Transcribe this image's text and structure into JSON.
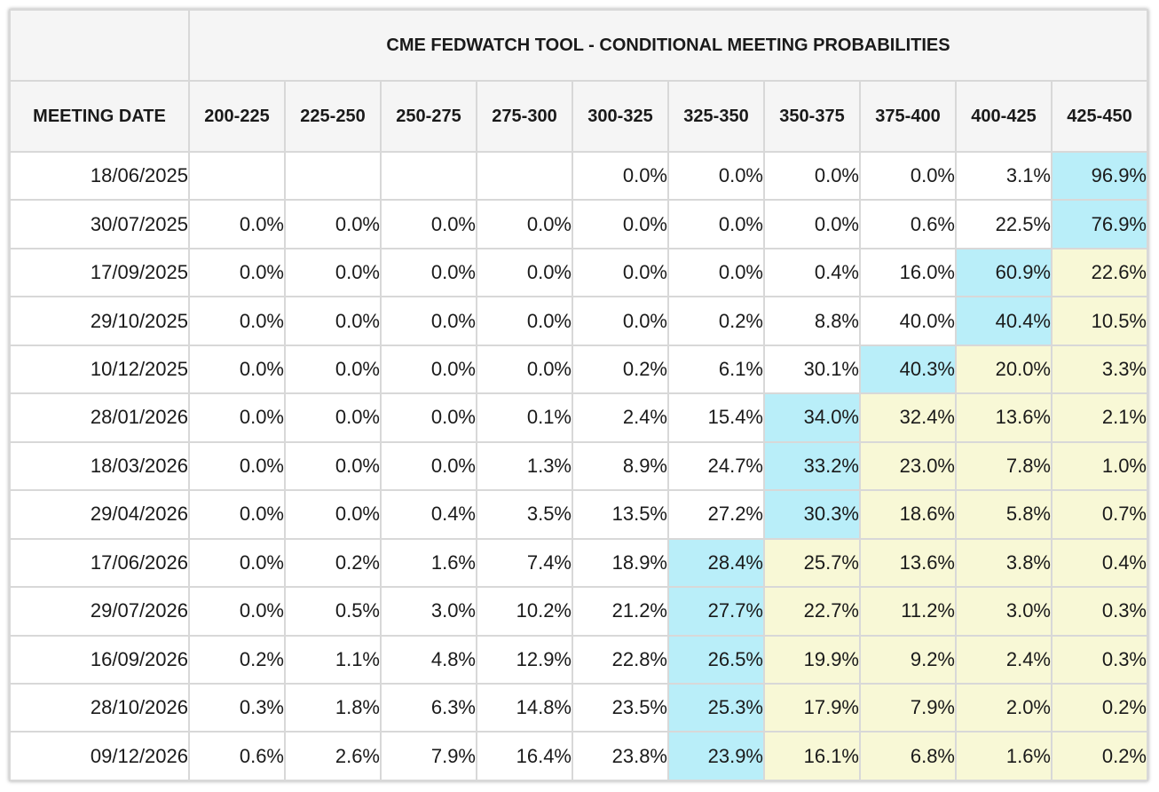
{
  "table": {
    "title": "CME FEDWATCH TOOL - CONDITIONAL MEETING PROBABILITIES",
    "date_header": "MEETING DATE",
    "columns": [
      "200-225",
      "225-250",
      "250-275",
      "275-300",
      "300-325",
      "325-350",
      "350-375",
      "375-400",
      "400-425",
      "425-450"
    ],
    "highlight_colors": {
      "mode": "#b9eef9",
      "above_mode": "#f8f8d6"
    },
    "rows": [
      {
        "date": "18/06/2025",
        "values": [
          "",
          "",
          "",
          "",
          "0.0%",
          "0.0%",
          "0.0%",
          "0.0%",
          "3.1%",
          "96.9%"
        ],
        "mode": 9
      },
      {
        "date": "30/07/2025",
        "values": [
          "0.0%",
          "0.0%",
          "0.0%",
          "0.0%",
          "0.0%",
          "0.0%",
          "0.0%",
          "0.6%",
          "22.5%",
          "76.9%"
        ],
        "mode": 9
      },
      {
        "date": "17/09/2025",
        "values": [
          "0.0%",
          "0.0%",
          "0.0%",
          "0.0%",
          "0.0%",
          "0.0%",
          "0.4%",
          "16.0%",
          "60.9%",
          "22.6%"
        ],
        "mode": 8
      },
      {
        "date": "29/10/2025",
        "values": [
          "0.0%",
          "0.0%",
          "0.0%",
          "0.0%",
          "0.0%",
          "0.2%",
          "8.8%",
          "40.0%",
          "40.4%",
          "10.5%"
        ],
        "mode": 8
      },
      {
        "date": "10/12/2025",
        "values": [
          "0.0%",
          "0.0%",
          "0.0%",
          "0.0%",
          "0.2%",
          "6.1%",
          "30.1%",
          "40.3%",
          "20.0%",
          "3.3%"
        ],
        "mode": 7
      },
      {
        "date": "28/01/2026",
        "values": [
          "0.0%",
          "0.0%",
          "0.0%",
          "0.1%",
          "2.4%",
          "15.4%",
          "34.0%",
          "32.4%",
          "13.6%",
          "2.1%"
        ],
        "mode": 6
      },
      {
        "date": "18/03/2026",
        "values": [
          "0.0%",
          "0.0%",
          "0.0%",
          "1.3%",
          "8.9%",
          "24.7%",
          "33.2%",
          "23.0%",
          "7.8%",
          "1.0%"
        ],
        "mode": 6
      },
      {
        "date": "29/04/2026",
        "values": [
          "0.0%",
          "0.0%",
          "0.4%",
          "3.5%",
          "13.5%",
          "27.2%",
          "30.3%",
          "18.6%",
          "5.8%",
          "0.7%"
        ],
        "mode": 6
      },
      {
        "date": "17/06/2026",
        "values": [
          "0.0%",
          "0.2%",
          "1.6%",
          "7.4%",
          "18.9%",
          "28.4%",
          "25.7%",
          "13.6%",
          "3.8%",
          "0.4%"
        ],
        "mode": 5
      },
      {
        "date": "29/07/2026",
        "values": [
          "0.0%",
          "0.5%",
          "3.0%",
          "10.2%",
          "21.2%",
          "27.7%",
          "22.7%",
          "11.2%",
          "3.0%",
          "0.3%"
        ],
        "mode": 5
      },
      {
        "date": "16/09/2026",
        "values": [
          "0.2%",
          "1.1%",
          "4.8%",
          "12.9%",
          "22.8%",
          "26.5%",
          "19.9%",
          "9.2%",
          "2.4%",
          "0.3%"
        ],
        "mode": 5
      },
      {
        "date": "28/10/2026",
        "values": [
          "0.3%",
          "1.8%",
          "6.3%",
          "14.8%",
          "23.5%",
          "25.3%",
          "17.9%",
          "7.9%",
          "2.0%",
          "0.2%"
        ],
        "mode": 5
      },
      {
        "date": "09/12/2026",
        "values": [
          "0.6%",
          "2.6%",
          "7.9%",
          "16.4%",
          "23.8%",
          "23.9%",
          "16.1%",
          "6.8%",
          "1.6%",
          "0.2%"
        ],
        "mode": 5
      }
    ]
  }
}
